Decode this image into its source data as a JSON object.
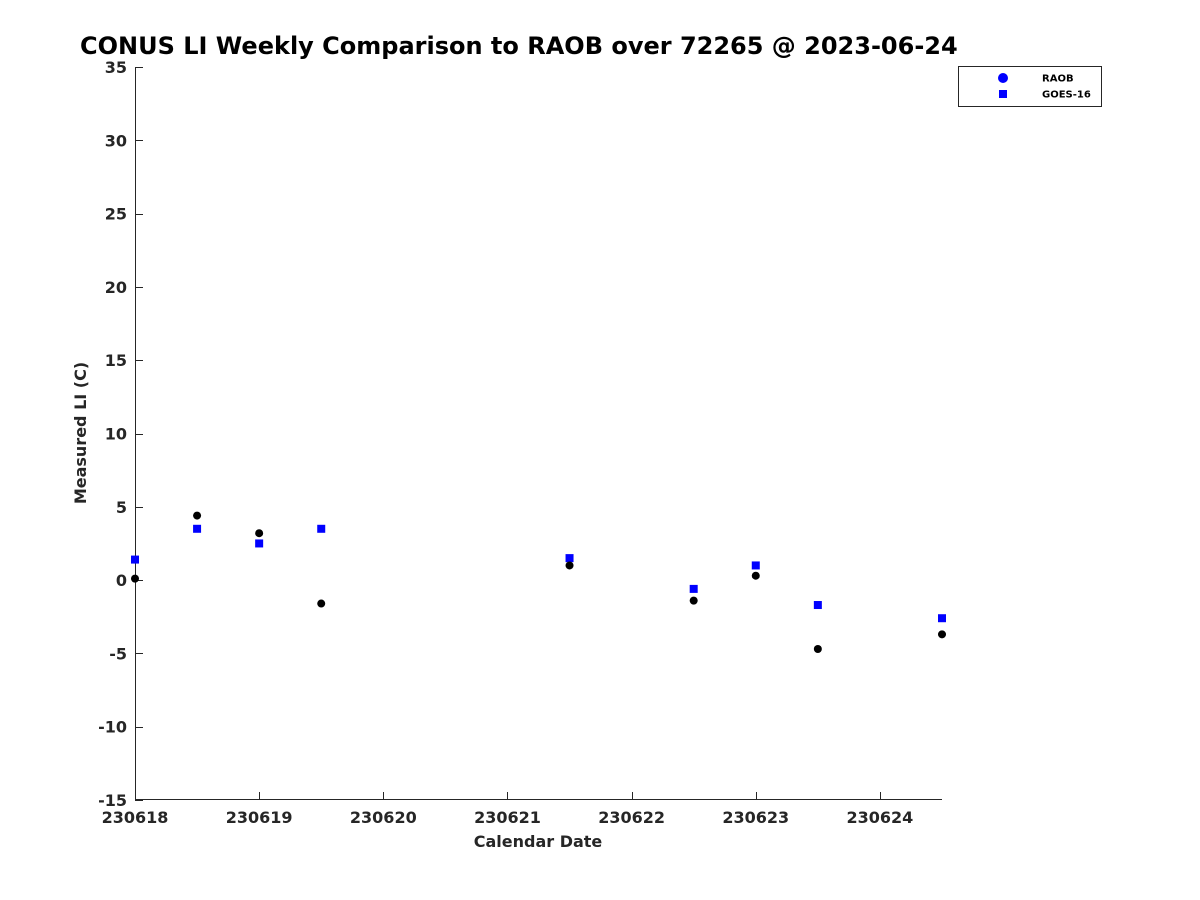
{
  "chart_data": {
    "type": "scatter",
    "title": "CONUS LI Weekly Comparison to RAOB over 72265 @ 2023-06-24",
    "xlabel": "Calendar Date",
    "ylabel": "Measured LI (C)",
    "xlim": [
      "2023-06-18T00:00",
      "2023-06-24T12:00"
    ],
    "ylim": [
      -15,
      35
    ],
    "x_ticks": [
      {
        "label": "230618",
        "x": "2023-06-18T00:00"
      },
      {
        "label": "230619",
        "x": "2023-06-19T00:00"
      },
      {
        "label": "230620",
        "x": "2023-06-20T00:00"
      },
      {
        "label": "230621",
        "x": "2023-06-21T00:00"
      },
      {
        "label": "230622",
        "x": "2023-06-22T00:00"
      },
      {
        "label": "230623",
        "x": "2023-06-23T00:00"
      },
      {
        "label": "230624",
        "x": "2023-06-24T00:00"
      }
    ],
    "y_ticks": [
      -15,
      -10,
      -5,
      0,
      5,
      10,
      15,
      20,
      25,
      30,
      35
    ],
    "grid": false,
    "legend_position": "top-right",
    "series": [
      {
        "name": "RAOB",
        "marker": "circle",
        "legend_color": "#0000ff",
        "point_color": "#000000",
        "points": [
          {
            "x": "2023-06-18T00:00",
            "y": 0.1
          },
          {
            "x": "2023-06-18T12:00",
            "y": 4.4
          },
          {
            "x": "2023-06-19T00:00",
            "y": 3.2
          },
          {
            "x": "2023-06-19T12:00",
            "y": -1.6
          },
          {
            "x": "2023-06-21T12:00",
            "y": 1.0
          },
          {
            "x": "2023-06-22T12:00",
            "y": -1.4
          },
          {
            "x": "2023-06-23T00:00",
            "y": 0.3
          },
          {
            "x": "2023-06-23T12:00",
            "y": -4.7
          },
          {
            "x": "2023-06-24T12:00",
            "y": -3.7
          }
        ]
      },
      {
        "name": "GOES-16",
        "marker": "square",
        "legend_color": "#0000ff",
        "point_color": "#0000ff",
        "points": [
          {
            "x": "2023-06-18T00:00",
            "y": 1.4
          },
          {
            "x": "2023-06-18T12:00",
            "y": 3.5
          },
          {
            "x": "2023-06-19T00:00",
            "y": 2.5
          },
          {
            "x": "2023-06-19T12:00",
            "y": 3.5
          },
          {
            "x": "2023-06-21T12:00",
            "y": 1.5
          },
          {
            "x": "2023-06-22T12:00",
            "y": -0.6
          },
          {
            "x": "2023-06-23T00:00",
            "y": 1.0
          },
          {
            "x": "2023-06-23T12:00",
            "y": -1.7
          },
          {
            "x": "2023-06-24T12:00",
            "y": -2.6
          }
        ]
      }
    ]
  }
}
